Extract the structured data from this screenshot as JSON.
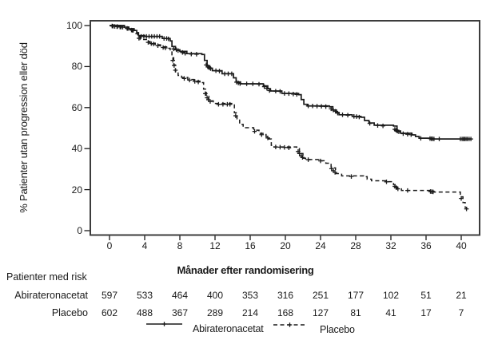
{
  "figure": {
    "background": "#ffffff",
    "line_color": "#1a1a1a",
    "border_color": "#3c3c3c"
  },
  "x_axis": {
    "title": "Månader efter randomisering",
    "ticks": [
      0,
      4,
      8,
      12,
      16,
      20,
      24,
      28,
      32,
      36,
      40
    ]
  },
  "y_axis": {
    "title": "% Patienter utan progression eller död",
    "ticks": [
      0,
      20,
      40,
      60,
      80,
      100
    ]
  },
  "risk_table": {
    "heading": "Patienter med risk",
    "rows": [
      {
        "label": "Abirateronacetat",
        "values": [
          597,
          533,
          464,
          400,
          353,
          316,
          251,
          177,
          102,
          51,
          21
        ]
      },
      {
        "label": "Placebo",
        "values": [
          602,
          488,
          367,
          289,
          214,
          168,
          127,
          81,
          41,
          17,
          7
        ]
      }
    ]
  },
  "legend": [
    {
      "label": "Abirateronacetat",
      "style": "solid"
    },
    {
      "label": "Placebo",
      "style": "dashed"
    }
  ],
  "chart_data": {
    "type": "line",
    "subtype": "kaplan-meier-step",
    "title": "",
    "xlabel": "Månader efter randomisering",
    "ylabel": "% Patienter utan progression eller död",
    "xlim": [
      -2.3,
      42.3
    ],
    "ylim": [
      -2.5,
      102.5
    ],
    "grid": false,
    "legend_position": "bottom",
    "series": [
      {
        "name": "Abirateronacetat",
        "style": "solid",
        "points": [
          [
            0,
            100
          ],
          [
            1.7,
            99.2
          ],
          [
            2.2,
            98.4
          ],
          [
            2.8,
            97.6
          ],
          [
            3.1,
            96.5
          ],
          [
            3.3,
            95.1
          ],
          [
            4.0,
            94.7
          ],
          [
            6.0,
            93.7
          ],
          [
            6.9,
            92.5
          ],
          [
            7.1,
            89.8
          ],
          [
            7.5,
            88.2
          ],
          [
            8.0,
            87.4
          ],
          [
            8.8,
            86.3
          ],
          [
            10.5,
            85.9
          ],
          [
            10.8,
            83.0
          ],
          [
            11.1,
            80.4
          ],
          [
            11.4,
            79.2
          ],
          [
            11.7,
            78.0
          ],
          [
            12.8,
            76.5
          ],
          [
            14.1,
            74.5
          ],
          [
            14.4,
            72.5
          ],
          [
            14.9,
            71.6
          ],
          [
            17.5,
            70.6
          ],
          [
            18.0,
            69.2
          ],
          [
            18.3,
            68.1
          ],
          [
            19.6,
            66.9
          ],
          [
            21.5,
            66.3
          ],
          [
            21.8,
            63.9
          ],
          [
            22.1,
            61.6
          ],
          [
            22.5,
            60.8
          ],
          [
            25.0,
            60.4
          ],
          [
            25.4,
            58.8
          ],
          [
            25.8,
            57.6
          ],
          [
            26.1,
            56.5
          ],
          [
            27.6,
            55.7
          ],
          [
            28.6,
            55.3
          ],
          [
            29.0,
            53.7
          ],
          [
            29.5,
            52.5
          ],
          [
            30.1,
            51.4
          ],
          [
            32.3,
            51.0
          ],
          [
            32.7,
            48.6
          ],
          [
            33.1,
            47.5
          ],
          [
            34.4,
            46.7
          ],
          [
            34.8,
            45.9
          ],
          [
            35.2,
            45.1
          ],
          [
            36.5,
            44.7
          ],
          [
            41.2,
            44.7
          ]
        ],
        "censors": [
          [
            0.3,
            99.8
          ],
          [
            0.6,
            99.6
          ],
          [
            0.9,
            99.5
          ],
          [
            1.2,
            99.3
          ],
          [
            1.5,
            99.2
          ],
          [
            2.0,
            98.6
          ],
          [
            2.5,
            97.8
          ],
          [
            2.7,
            97.7
          ],
          [
            3.6,
            94.7
          ],
          [
            3.9,
            94.7
          ],
          [
            4.2,
            94.7
          ],
          [
            4.5,
            94.7
          ],
          [
            4.8,
            94.7
          ],
          [
            5.1,
            94.7
          ],
          [
            5.4,
            94.7
          ],
          [
            5.7,
            94.7
          ],
          [
            6.2,
            93.7
          ],
          [
            6.5,
            93.7
          ],
          [
            6.7,
            93.5
          ],
          [
            7.3,
            88.6
          ],
          [
            7.6,
            88.2
          ],
          [
            7.8,
            87.8
          ],
          [
            8.3,
            86.9
          ],
          [
            8.6,
            86.5
          ],
          [
            9.3,
            86.1
          ],
          [
            9.9,
            86.0
          ],
          [
            11.0,
            80.8
          ],
          [
            11.2,
            79.8
          ],
          [
            11.35,
            79.4
          ],
          [
            11.5,
            79.0
          ],
          [
            12.1,
            78.0
          ],
          [
            12.5,
            77.8
          ],
          [
            13.1,
            76.5
          ],
          [
            13.5,
            76.5
          ],
          [
            13.9,
            76.5
          ],
          [
            14.45,
            72.4
          ],
          [
            14.65,
            72.0
          ],
          [
            14.85,
            71.7
          ],
          [
            15.6,
            71.6
          ],
          [
            16.3,
            71.6
          ],
          [
            17.0,
            71.4
          ],
          [
            17.6,
            70.2
          ],
          [
            17.9,
            69.4
          ],
          [
            18.2,
            68.3
          ],
          [
            18.9,
            68.0
          ],
          [
            19.4,
            67.9
          ],
          [
            19.9,
            66.9
          ],
          [
            20.4,
            66.8
          ],
          [
            20.9,
            66.6
          ],
          [
            21.3,
            66.4
          ],
          [
            22.6,
            60.8
          ],
          [
            23.1,
            60.8
          ],
          [
            23.6,
            60.7
          ],
          [
            24.1,
            60.6
          ],
          [
            24.6,
            60.5
          ],
          [
            25.2,
            59.4
          ],
          [
            25.45,
            58.8
          ],
          [
            25.7,
            58.2
          ],
          [
            25.95,
            57.3
          ],
          [
            26.5,
            56.5
          ],
          [
            27.1,
            56.3
          ],
          [
            27.8,
            55.7
          ],
          [
            28.1,
            55.6
          ],
          [
            28.4,
            55.4
          ],
          [
            29.6,
            52.3
          ],
          [
            30.5,
            51.3
          ],
          [
            31.1,
            51.1
          ],
          [
            32.45,
            49.4
          ],
          [
            32.6,
            48.9
          ],
          [
            32.75,
            48.5
          ],
          [
            32.9,
            48.2
          ],
          [
            33.4,
            47.3
          ],
          [
            33.9,
            47.0
          ],
          [
            34.3,
            46.8
          ],
          [
            35.4,
            45.0
          ],
          [
            36.45,
            44.9
          ],
          [
            36.6,
            44.8
          ],
          [
            36.75,
            44.8
          ],
          [
            36.9,
            44.7
          ],
          [
            37.5,
            44.7
          ],
          [
            39.9,
            44.7
          ],
          [
            40.1,
            44.7
          ],
          [
            40.25,
            44.7
          ],
          [
            40.4,
            44.7
          ],
          [
            40.55,
            44.7
          ],
          [
            40.7,
            44.7
          ],
          [
            40.9,
            44.7
          ],
          [
            41.1,
            44.7
          ]
        ]
      },
      {
        "name": "Placebo",
        "style": "dashed",
        "points": [
          [
            0,
            100
          ],
          [
            1.7,
            99.2
          ],
          [
            2.2,
            98.4
          ],
          [
            2.8,
            97.6
          ],
          [
            3.0,
            96.1
          ],
          [
            3.2,
            94.5
          ],
          [
            3.5,
            93.2
          ],
          [
            4.2,
            92.2
          ],
          [
            4.6,
            91.4
          ],
          [
            5.2,
            90.6
          ],
          [
            5.8,
            89.6
          ],
          [
            6.5,
            88.9
          ],
          [
            6.9,
            87.1
          ],
          [
            7.1,
            84.3
          ],
          [
            7.3,
            80.8
          ],
          [
            7.5,
            77.6
          ],
          [
            7.8,
            75.7
          ],
          [
            8.2,
            74.7
          ],
          [
            8.9,
            73.7
          ],
          [
            9.6,
            72.9
          ],
          [
            10.4,
            72.2
          ],
          [
            10.7,
            69.0
          ],
          [
            11.0,
            65.5
          ],
          [
            11.3,
            63.3
          ],
          [
            11.8,
            62.0
          ],
          [
            13.9,
            61.6
          ],
          [
            14.2,
            57.5
          ],
          [
            14.5,
            54.5
          ],
          [
            14.8,
            51.8
          ],
          [
            15.2,
            50.2
          ],
          [
            16.4,
            49.0
          ],
          [
            17.0,
            47.4
          ],
          [
            17.8,
            45.9
          ],
          [
            18.1,
            44.7
          ],
          [
            18.4,
            41.6
          ],
          [
            18.7,
            40.8
          ],
          [
            21.3,
            40.0
          ],
          [
            21.6,
            37.6
          ],
          [
            22.0,
            35.3
          ],
          [
            22.3,
            34.7
          ],
          [
            23.8,
            34.1
          ],
          [
            24.6,
            32.9
          ],
          [
            25.2,
            30.6
          ],
          [
            25.7,
            27.8
          ],
          [
            26.4,
            26.7
          ],
          [
            28.9,
            26.3
          ],
          [
            29.3,
            25.1
          ],
          [
            29.8,
            24.3
          ],
          [
            31.4,
            23.9
          ],
          [
            32.3,
            22.4
          ],
          [
            32.7,
            20.4
          ],
          [
            33.2,
            19.6
          ],
          [
            36.4,
            19.2
          ],
          [
            36.9,
            18.8
          ],
          [
            39.6,
            18.8
          ],
          [
            39.9,
            16.5
          ],
          [
            40.2,
            13.7
          ],
          [
            40.45,
            11.4
          ],
          [
            40.6,
            10.6
          ]
        ],
        "censors": [
          [
            0.4,
            99.7
          ],
          [
            0.85,
            99.5
          ],
          [
            1.3,
            99.3
          ],
          [
            2.1,
            98.5
          ],
          [
            2.6,
            97.7
          ],
          [
            3.35,
            93.8
          ],
          [
            4.4,
            91.8
          ],
          [
            4.75,
            91.2
          ],
          [
            5.0,
            91.0
          ],
          [
            5.5,
            90.2
          ],
          [
            6.1,
            89.3
          ],
          [
            6.35,
            89.1
          ],
          [
            7.2,
            83.0
          ],
          [
            7.35,
            80.5
          ],
          [
            7.5,
            78.2
          ],
          [
            8.5,
            74.2
          ],
          [
            9.1,
            73.4
          ],
          [
            9.7,
            72.8
          ],
          [
            10.1,
            72.5
          ],
          [
            10.9,
            66.8
          ],
          [
            11.1,
            64.8
          ],
          [
            11.25,
            63.8
          ],
          [
            11.45,
            63.0
          ],
          [
            12.4,
            61.6
          ],
          [
            12.9,
            61.6
          ],
          [
            13.4,
            61.6
          ],
          [
            13.7,
            61.6
          ],
          [
            14.35,
            56.0
          ],
          [
            16.5,
            48.4
          ],
          [
            17.3,
            46.8
          ],
          [
            18.0,
            45.2
          ],
          [
            18.9,
            40.8
          ],
          [
            19.4,
            40.7
          ],
          [
            19.9,
            40.6
          ],
          [
            20.4,
            40.4
          ],
          [
            21.45,
            38.6
          ],
          [
            21.6,
            37.6
          ],
          [
            21.8,
            36.5
          ],
          [
            21.95,
            35.7
          ],
          [
            22.6,
            34.6
          ],
          [
            24.0,
            34.0
          ],
          [
            25.25,
            30.2
          ],
          [
            25.45,
            29.2
          ],
          [
            25.65,
            28.4
          ],
          [
            27.5,
            26.4
          ],
          [
            31.5,
            23.8
          ],
          [
            32.45,
            21.6
          ],
          [
            32.6,
            21.0
          ],
          [
            32.8,
            20.4
          ],
          [
            33.9,
            19.6
          ],
          [
            36.5,
            19.1
          ],
          [
            36.65,
            19.0
          ],
          [
            36.8,
            18.9
          ],
          [
            40.0,
            15.7
          ],
          [
            40.6,
            10.6
          ]
        ]
      }
    ]
  }
}
